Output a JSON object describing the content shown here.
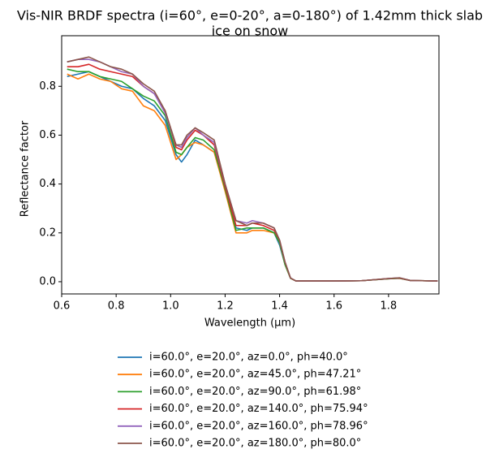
{
  "chart_data": {
    "type": "line",
    "title": [
      "Vis-NIR BRDF spectra (i=60°, e=0-20°, a=0-180°) of 1.42mm thick slab",
      "ice on snow"
    ],
    "x_label": "Wavelength (μm)",
    "y_label": "Reflectance factor",
    "x": [
      0.62,
      0.66,
      0.7,
      0.74,
      0.78,
      0.82,
      0.86,
      0.9,
      0.94,
      0.98,
      1.02,
      1.04,
      1.06,
      1.09,
      1.12,
      1.16,
      1.2,
      1.24,
      1.28,
      1.3,
      1.34,
      1.38,
      1.4,
      1.42,
      1.44,
      1.46,
      1.5,
      1.6,
      1.7,
      1.8,
      1.84,
      1.88,
      1.98
    ],
    "series": [
      {
        "name": "i=60.0°, e=20.0°, az=0.0°, ph=40.0°",
        "color": "#1f77b4",
        "values": [
          0.84,
          0.85,
          0.86,
          0.84,
          0.82,
          0.8,
          0.79,
          0.75,
          0.72,
          0.66,
          0.52,
          0.49,
          0.52,
          0.58,
          0.56,
          0.53,
          0.38,
          0.22,
          0.21,
          0.22,
          0.22,
          0.2,
          0.15,
          0.07,
          0.015,
          0.003,
          0.003,
          0.003,
          0.004,
          0.012,
          0.014,
          0.005,
          0.003
        ]
      },
      {
        "name": "i=60.0°, e=20.0°, az=45.0°, ph=47.21°",
        "color": "#ff7f0e",
        "values": [
          0.85,
          0.83,
          0.85,
          0.83,
          0.82,
          0.79,
          0.78,
          0.72,
          0.7,
          0.64,
          0.5,
          0.52,
          0.55,
          0.57,
          0.56,
          0.53,
          0.37,
          0.2,
          0.2,
          0.21,
          0.21,
          0.2,
          0.16,
          0.07,
          0.014,
          0.003,
          0.003,
          0.003,
          0.004,
          0.012,
          0.014,
          0.005,
          0.003
        ]
      },
      {
        "name": "i=60.0°, e=20.0°, az=90.0°, ph=61.98°",
        "color": "#2ca02c",
        "values": [
          0.87,
          0.86,
          0.86,
          0.84,
          0.83,
          0.82,
          0.79,
          0.76,
          0.74,
          0.68,
          0.53,
          0.52,
          0.55,
          0.59,
          0.58,
          0.54,
          0.38,
          0.21,
          0.22,
          0.22,
          0.22,
          0.2,
          0.16,
          0.07,
          0.014,
          0.003,
          0.003,
          0.003,
          0.004,
          0.012,
          0.014,
          0.005,
          0.003
        ]
      },
      {
        "name": "i=60.0°, e=20.0°, az=140.0°, ph=75.94°",
        "color": "#d62728",
        "values": [
          0.88,
          0.88,
          0.89,
          0.87,
          0.86,
          0.85,
          0.84,
          0.8,
          0.77,
          0.7,
          0.55,
          0.54,
          0.58,
          0.62,
          0.6,
          0.56,
          0.39,
          0.23,
          0.23,
          0.24,
          0.23,
          0.21,
          0.17,
          0.08,
          0.015,
          0.003,
          0.003,
          0.003,
          0.004,
          0.013,
          0.015,
          0.005,
          0.003
        ]
      },
      {
        "name": "i=60.0°, e=20.0°, az=160.0°, ph=78.96°",
        "color": "#9467bd",
        "values": [
          0.9,
          0.91,
          0.91,
          0.9,
          0.88,
          0.86,
          0.85,
          0.8,
          0.77,
          0.69,
          0.56,
          0.55,
          0.59,
          0.63,
          0.6,
          0.57,
          0.4,
          0.25,
          0.24,
          0.25,
          0.24,
          0.22,
          0.17,
          0.08,
          0.015,
          0.003,
          0.003,
          0.003,
          0.004,
          0.013,
          0.016,
          0.005,
          0.003
        ]
      },
      {
        "name": "i=60.0°, e=20.0°, az=180.0°, ph=80.0°",
        "color": "#8c564b",
        "values": [
          0.9,
          0.91,
          0.92,
          0.9,
          0.88,
          0.87,
          0.85,
          0.81,
          0.78,
          0.7,
          0.56,
          0.56,
          0.6,
          0.63,
          0.61,
          0.58,
          0.4,
          0.25,
          0.23,
          0.24,
          0.24,
          0.22,
          0.17,
          0.08,
          0.015,
          0.003,
          0.003,
          0.003,
          0.004,
          0.013,
          0.016,
          0.005,
          0.003
        ]
      }
    ],
    "xlim": [
      0.6,
      1.985
    ],
    "ylim": [
      -0.05,
      1.007
    ],
    "xticks": [
      0.6,
      0.8,
      {
        "value": 1,
        "label": "1.0"
      },
      1.2,
      1.4,
      1.6,
      1.8
    ],
    "yticks": [
      {
        "value": 0,
        "label": "0.0"
      },
      0.2,
      0.4,
      0.6,
      0.8
    ],
    "legend": "below"
  }
}
